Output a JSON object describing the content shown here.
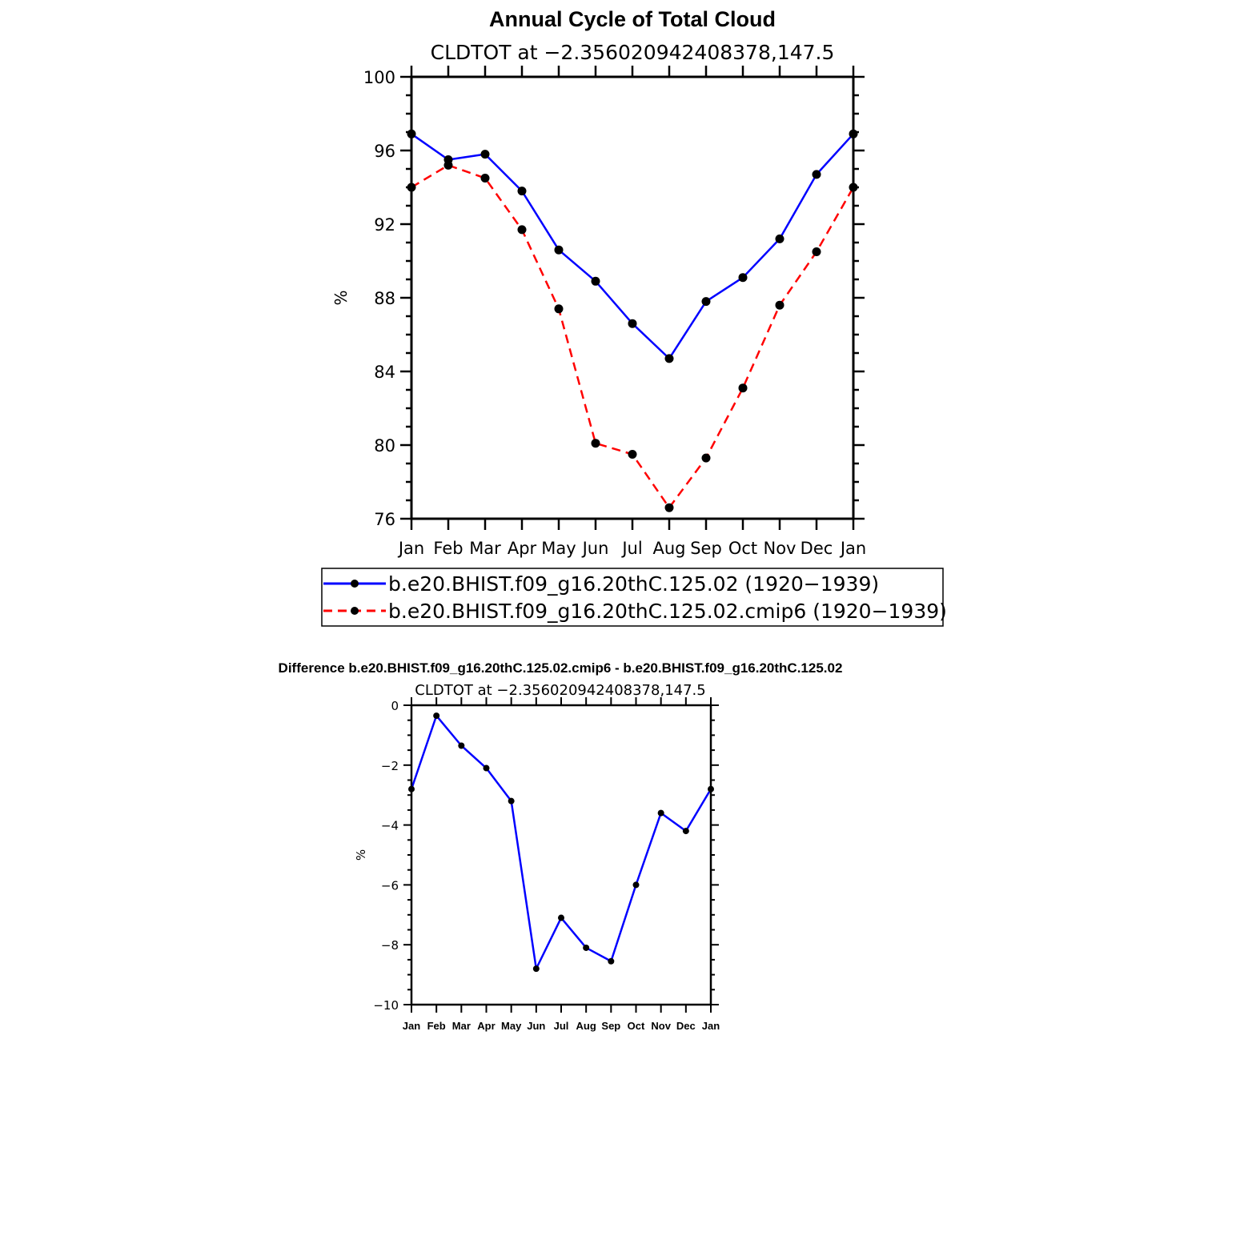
{
  "chart_data": [
    {
      "type": "line",
      "title": "Annual Cycle of Total Cloud",
      "subtitle": "CLDTOT at −2.356020942408378,147.5",
      "ylabel": "%",
      "xlabel": "",
      "categories": [
        "Jan",
        "Feb",
        "Mar",
        "Apr",
        "May",
        "Jun",
        "Jul",
        "Aug",
        "Sep",
        "Oct",
        "Nov",
        "Dec",
        "Jan"
      ],
      "ylim": [
        76,
        100
      ],
      "yticks": [
        76,
        80,
        84,
        88,
        92,
        96,
        100
      ],
      "legend_position": "bottom",
      "series": [
        {
          "name": "b.e20.BHIST.f09_g16.20thC.125.02 (1920−1939)",
          "color": "#0000ff",
          "style": "solid",
          "values": [
            96.9,
            95.5,
            95.8,
            93.8,
            90.6,
            88.9,
            86.6,
            84.7,
            87.8,
            89.1,
            91.2,
            94.7,
            96.9
          ]
        },
        {
          "name": "b.e20.BHIST.f09_g16.20thC.125.02.cmip6 (1920−1939)",
          "color": "#ff0000",
          "style": "dashed",
          "values": [
            94.0,
            95.2,
            94.5,
            91.7,
            87.4,
            80.1,
            79.5,
            76.6,
            79.3,
            83.1,
            87.6,
            90.5,
            94.0
          ]
        }
      ]
    },
    {
      "type": "line",
      "title": "Difference b.e20.BHIST.f09_g16.20thC.125.02.cmip6 - b.e20.BHIST.f09_g16.20thC.125.02",
      "subtitle": "CLDTOT at −2.356020942408378,147.5",
      "ylabel": "%",
      "xlabel": "",
      "categories": [
        "Jan",
        "Feb",
        "Mar",
        "Apr",
        "May",
        "Jun",
        "Jul",
        "Aug",
        "Sep",
        "Oct",
        "Nov",
        "Dec",
        "Jan"
      ],
      "ylim": [
        -10,
        0
      ],
      "yticks": [
        -10,
        -8,
        -6,
        -4,
        -2,
        0
      ],
      "ytick_labels": [
        "−10",
        "−8",
        "−6",
        "−4",
        "−2",
        "0"
      ],
      "series": [
        {
          "color": "#0000ff",
          "style": "solid",
          "values": [
            -2.8,
            -0.35,
            -1.35,
            -2.1,
            -3.2,
            -8.8,
            -7.1,
            -8.1,
            -8.55,
            -6.0,
            -3.6,
            -4.2,
            -2.8
          ]
        }
      ]
    }
  ]
}
